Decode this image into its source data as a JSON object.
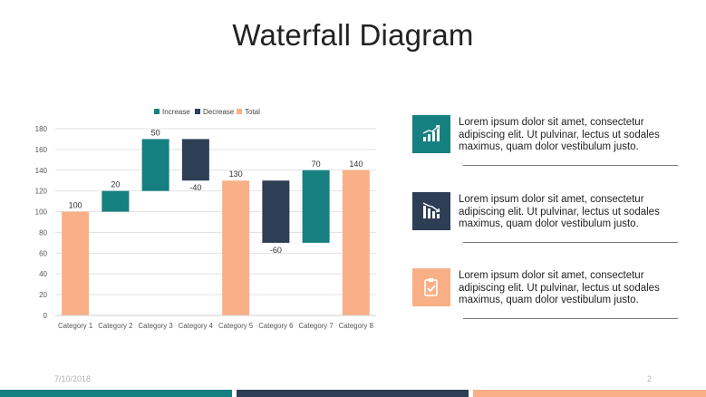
{
  "slide": {
    "title": "Waterfall Diagram",
    "date": "7/10/2018",
    "page_number": "2"
  },
  "colors": {
    "increase": "#167f7f",
    "decrease": "#2d3e55",
    "total": "#f9b087"
  },
  "cards": [
    {
      "icon": "bar-chart-up-icon",
      "color": "#167f7f",
      "text": "Lorem ipsum dolor sit amet, consectetur adipiscing elit. Ut pulvinar, lectus ut sodales maximus, quam dolor vestibulum justo."
    },
    {
      "icon": "bar-chart-down-icon",
      "color": "#2d3e55",
      "text": "Lorem ipsum dolor sit amet, consectetur adipiscing elit. Ut pulvinar, lectus ut sodales maximus, quam dolor vestibulum justo."
    },
    {
      "icon": "clipboard-check-icon",
      "color": "#f9b087",
      "text": "Lorem ipsum dolor sit amet, consectetur adipiscing elit. Ut pulvinar, lectus ut sodales maximus, quam dolor vestibulum justo."
    }
  ],
  "chart_data": {
    "type": "bar",
    "subtype": "waterfall",
    "categories": [
      "Category 1",
      "Category 2",
      "Category 3",
      "Category 4",
      "Category 5",
      "Category 6",
      "Category 7",
      "Category 8"
    ],
    "bars": [
      {
        "kind": "total",
        "start": 0,
        "end": 100,
        "label": "100"
      },
      {
        "kind": "increase",
        "start": 100,
        "end": 120,
        "label": "20"
      },
      {
        "kind": "increase",
        "start": 120,
        "end": 170,
        "label": "50"
      },
      {
        "kind": "decrease",
        "start": 170,
        "end": 130,
        "label": "-40"
      },
      {
        "kind": "total",
        "start": 0,
        "end": 130,
        "label": "130"
      },
      {
        "kind": "decrease",
        "start": 130,
        "end": 70,
        "label": "-60"
      },
      {
        "kind": "increase",
        "start": 70,
        "end": 140,
        "label": "70"
      },
      {
        "kind": "total",
        "start": 0,
        "end": 140,
        "label": "140"
      }
    ],
    "legend": [
      {
        "name": "Increase",
        "kind": "increase"
      },
      {
        "name": "Decrease",
        "kind": "decrease"
      },
      {
        "name": "Total",
        "kind": "total"
      }
    ],
    "legend_position": "top",
    "ylim": [
      0,
      180
    ],
    "yticks": [
      0,
      20,
      40,
      60,
      80,
      100,
      120,
      140,
      160,
      180
    ],
    "grid": true
  }
}
